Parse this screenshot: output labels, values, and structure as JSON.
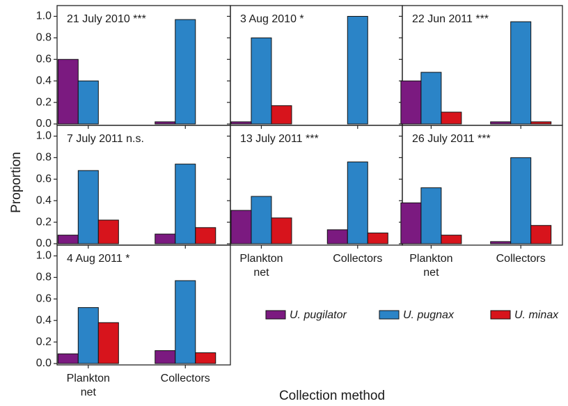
{
  "chart_data": {
    "type": "bar",
    "y_label": "Proportion",
    "x_label": "Collection method",
    "categories": [
      "Plankton net",
      "Collectors"
    ],
    "series": [
      {
        "name": "U. pugilator",
        "color": "#7b1a80"
      },
      {
        "name": "U. pugnax",
        "color": "#2b84c7"
      },
      {
        "name": "U. minax",
        "color": "#d7141c"
      }
    ],
    "ylim": [
      0,
      1.1
    ],
    "yticks": [
      {
        "value": 0,
        "label": "0.0"
      },
      0.2,
      0.4,
      0.6,
      0.8,
      {
        "value": 1,
        "label": "1.0"
      }
    ],
    "panels": [
      {
        "title": "21 July 2010 ***",
        "values": [
          [
            0.6,
            0.02
          ],
          [
            0.4,
            0.97
          ],
          [
            0,
            0
          ]
        ]
      },
      {
        "title": "3 Aug 2010 *",
        "values": [
          [
            0.02,
            0
          ],
          [
            0.8,
            1.0
          ],
          [
            0.17,
            0
          ]
        ]
      },
      {
        "title": "22 Jun 2011 ***",
        "values": [
          [
            0.4,
            0.02
          ],
          [
            0.48,
            0.95
          ],
          [
            0.11,
            0.02
          ]
        ]
      },
      {
        "title": "7 July 2011 n.s.",
        "values": [
          [
            0.08,
            0.09
          ],
          [
            0.68,
            0.74
          ],
          [
            0.22,
            0.15
          ]
        ]
      },
      {
        "title": "13 July  2011 ***",
        "values": [
          [
            0.31,
            0.13
          ],
          [
            0.44,
            0.76
          ],
          [
            0.24,
            0.1
          ]
        ]
      },
      {
        "title": "26 July 2011 ***",
        "values": [
          [
            0.38,
            0.02
          ],
          [
            0.52,
            0.8
          ],
          [
            0.08,
            0.17
          ]
        ]
      },
      {
        "title": "4 Aug 2011 *",
        "values": [
          [
            0.09,
            0.12
          ],
          [
            0.52,
            0.77
          ],
          [
            0.38,
            0.1
          ]
        ]
      }
    ]
  }
}
